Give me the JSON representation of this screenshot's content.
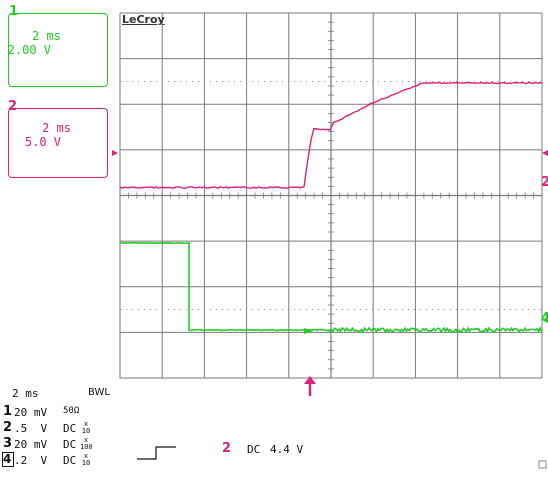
{
  "brand": "LeCroy",
  "channels": [
    {
      "num": "1",
      "setting": "20 mV",
      "coupling": "50Ω",
      "probe": ""
    },
    {
      "num": "2",
      "setting": ".5  V",
      "coupling": "DC",
      "probe": {
        "top": "x",
        "bottom": "10"
      }
    },
    {
      "num": "3",
      "setting": "20 mV",
      "coupling": "DC",
      "probe": {
        "top": "x",
        "bottom": "100"
      }
    },
    {
      "num": "4",
      "setting": ".2  V",
      "coupling": "DC",
      "probe": {
        "top": "x",
        "bottom": "10"
      }
    }
  ],
  "trace_boxes": [
    {
      "id": "1",
      "timebase": "2 ms",
      "volts": "2.00 V",
      "color": "#22cc22"
    },
    {
      "id": "2",
      "timebase": "2 ms",
      "volts": "5.0 V",
      "color": "#e0207a"
    }
  ],
  "timebase": "2 ms",
  "bwl": "BWL",
  "trigger": {
    "source": "2",
    "coupling": "DC",
    "level": "4.4 V"
  },
  "markers": {
    "right_top": "2",
    "right_bottom": "4"
  },
  "colors": {
    "ch_green": "#22cc22",
    "ch_magenta": "#e0207a",
    "grid": "#7a7a7a",
    "trigger": "#e0207a"
  }
}
